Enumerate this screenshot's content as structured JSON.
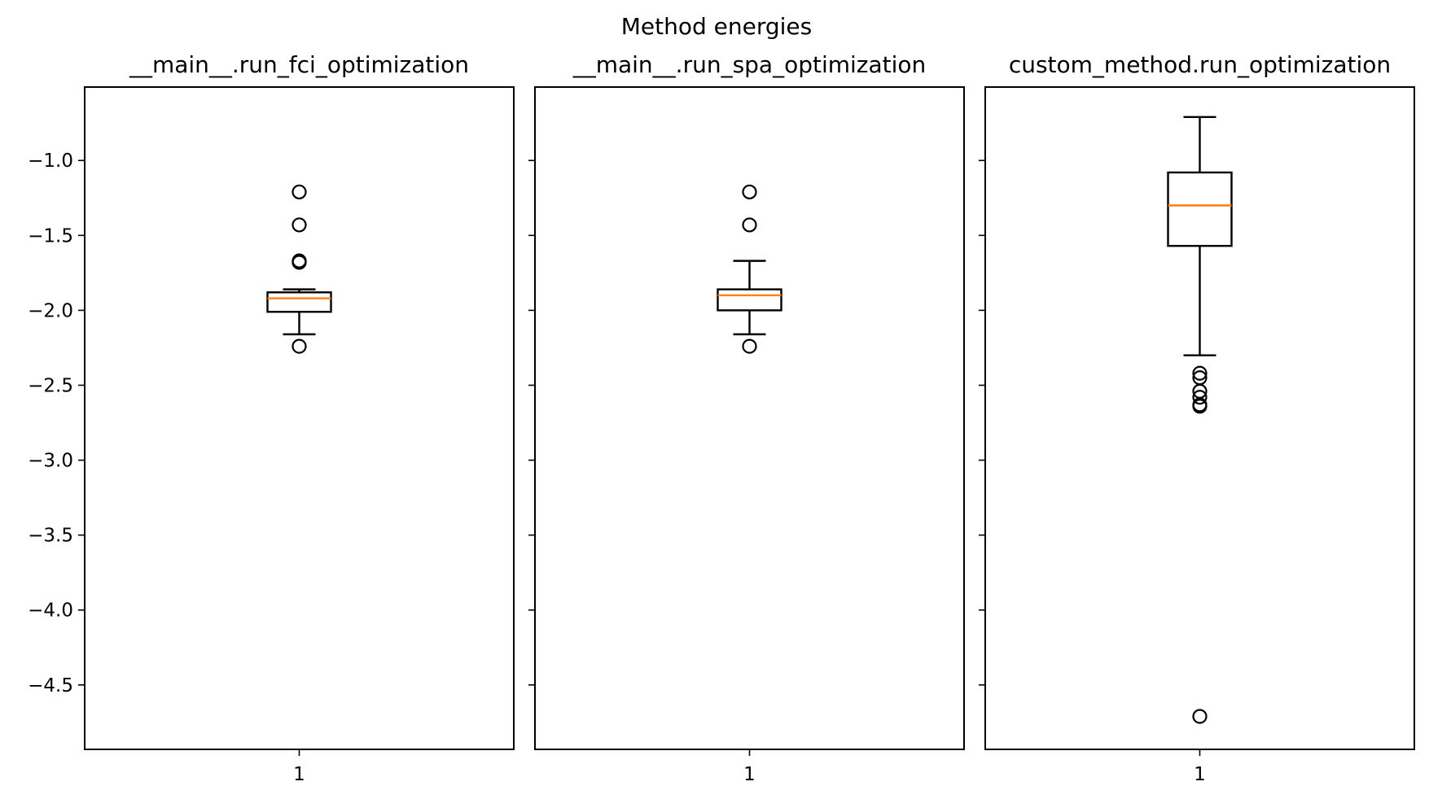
{
  "figure": {
    "title": "Method energies"
  },
  "chart_data": [
    {
      "type": "box",
      "title": "__main__.run_fci_optimization",
      "xlabel": "",
      "ylabel": "",
      "categories": [
        "1"
      ],
      "ylim": [
        -4.93,
        -0.51
      ],
      "yticks": [
        -1.0,
        -1.5,
        -2.0,
        -2.5,
        -3.0,
        -3.5,
        -4.0,
        -4.5
      ],
      "ytick_labels": [
        "−1.0",
        "−1.5",
        "−2.0",
        "−2.5",
        "−3.0",
        "−3.5",
        "−4.0",
        "−4.5"
      ],
      "show_ytick_labels": true,
      "box": {
        "whisker_low": -2.16,
        "q1": -2.01,
        "median": -1.92,
        "q3": -1.88,
        "whisker_high": -1.86,
        "fliers": [
          -1.21,
          -1.43,
          -1.67,
          -1.68,
          -2.24
        ]
      }
    },
    {
      "type": "box",
      "title": "__main__.run_spa_optimization",
      "xlabel": "",
      "ylabel": "",
      "categories": [
        "1"
      ],
      "ylim": [
        -4.93,
        -0.51
      ],
      "yticks": [
        -1.0,
        -1.5,
        -2.0,
        -2.5,
        -3.0,
        -3.5,
        -4.0,
        -4.5
      ],
      "ytick_labels": [
        "−1.0",
        "−1.5",
        "−2.0",
        "−2.5",
        "−3.0",
        "−3.5",
        "−4.0",
        "−4.5"
      ],
      "show_ytick_labels": false,
      "box": {
        "whisker_low": -2.16,
        "q1": -2.0,
        "median": -1.9,
        "q3": -1.86,
        "whisker_high": -1.67,
        "fliers": [
          -1.21,
          -1.43,
          -2.24
        ]
      }
    },
    {
      "type": "box",
      "title": "custom_method.run_optimization",
      "xlabel": "",
      "ylabel": "",
      "categories": [
        "1"
      ],
      "ylim": [
        -4.93,
        -0.51
      ],
      "yticks": [
        -1.0,
        -1.5,
        -2.0,
        -2.5,
        -3.0,
        -3.5,
        -4.0,
        -4.5
      ],
      "ytick_labels": [
        "−1.0",
        "−1.5",
        "−2.0",
        "−2.5",
        "−3.0",
        "−3.5",
        "−4.0",
        "−4.5"
      ],
      "show_ytick_labels": false,
      "box": {
        "whisker_low": -2.3,
        "q1": -1.57,
        "median": -1.3,
        "q3": -1.08,
        "whisker_high": -0.71,
        "fliers": [
          -2.42,
          -2.45,
          -2.54,
          -2.58,
          -2.63,
          -2.64,
          -4.71
        ]
      }
    }
  ],
  "colors": {
    "median": "#ff7f0e",
    "box": "#000000",
    "flier_edge": "#000000",
    "axes": "#000000"
  }
}
